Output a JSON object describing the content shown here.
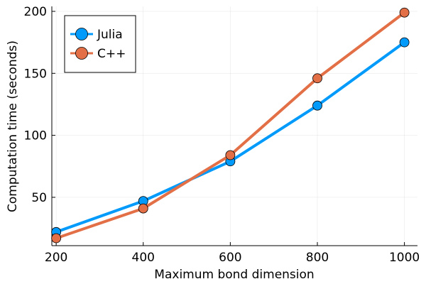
{
  "chart_data": {
    "type": "line",
    "title": "",
    "xlabel": "Maximum bond dimension",
    "ylabel": "Computation time (seconds)",
    "x": [
      200,
      400,
      600,
      800,
      1000
    ],
    "xlim": [
      190,
      1030
    ],
    "ylim": [
      11,
      204
    ],
    "xticks": [
      200,
      400,
      600,
      800,
      1000
    ],
    "yticks": [
      50,
      100,
      150,
      200
    ],
    "grid": true,
    "legend_position": "top-left",
    "series": [
      {
        "name": "Julia",
        "color": "#009AFA",
        "values": [
          22,
          47,
          79,
          124,
          175
        ]
      },
      {
        "name": "C++",
        "color": "#E26F46",
        "values": [
          17,
          41,
          84,
          146,
          199
        ]
      }
    ]
  }
}
